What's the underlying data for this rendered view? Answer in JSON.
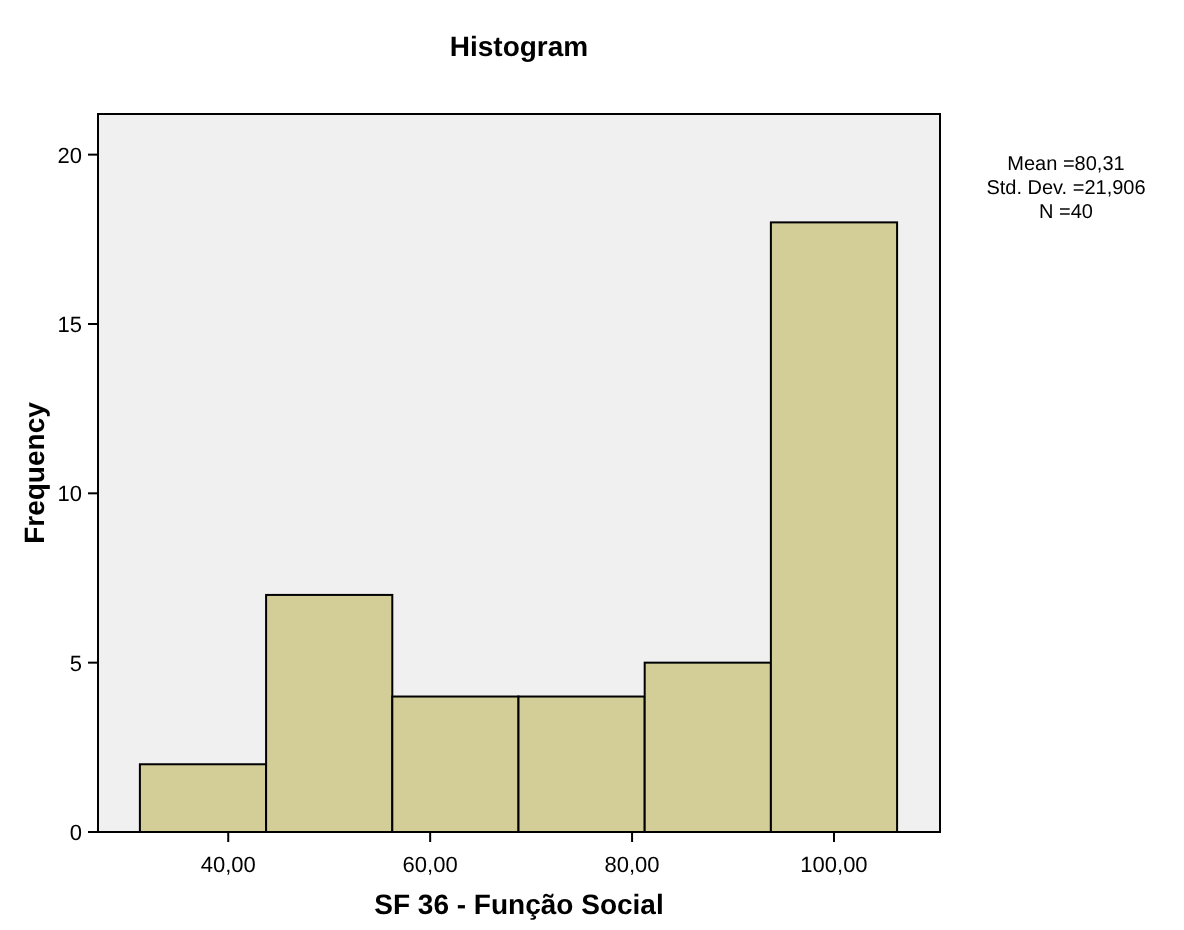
{
  "chart_data": {
    "type": "histogram",
    "title": "Histogram",
    "xlabel": "SF 36 - Função Social",
    "ylabel": "Frequency",
    "bins": [
      31.25,
      43.75,
      56.25,
      68.75,
      81.25,
      93.75,
      106.25
    ],
    "values": [
      2,
      7,
      4,
      4,
      5,
      18
    ],
    "color": "#d3ce98",
    "xlim": [
      27.1,
      110.5
    ],
    "xticks": [
      {
        "value": 40,
        "label": "40,00"
      },
      {
        "value": 60,
        "label": "60,00"
      },
      {
        "value": 80,
        "label": "80,00"
      },
      {
        "value": 100,
        "label": "100,00"
      }
    ],
    "ylim": [
      0,
      21.2
    ],
    "yticks": [
      0,
      5,
      10,
      15,
      20
    ],
    "annotations": [
      "Mean =80,31",
      "Std. Dev. =21,906",
      "N =40"
    ]
  }
}
